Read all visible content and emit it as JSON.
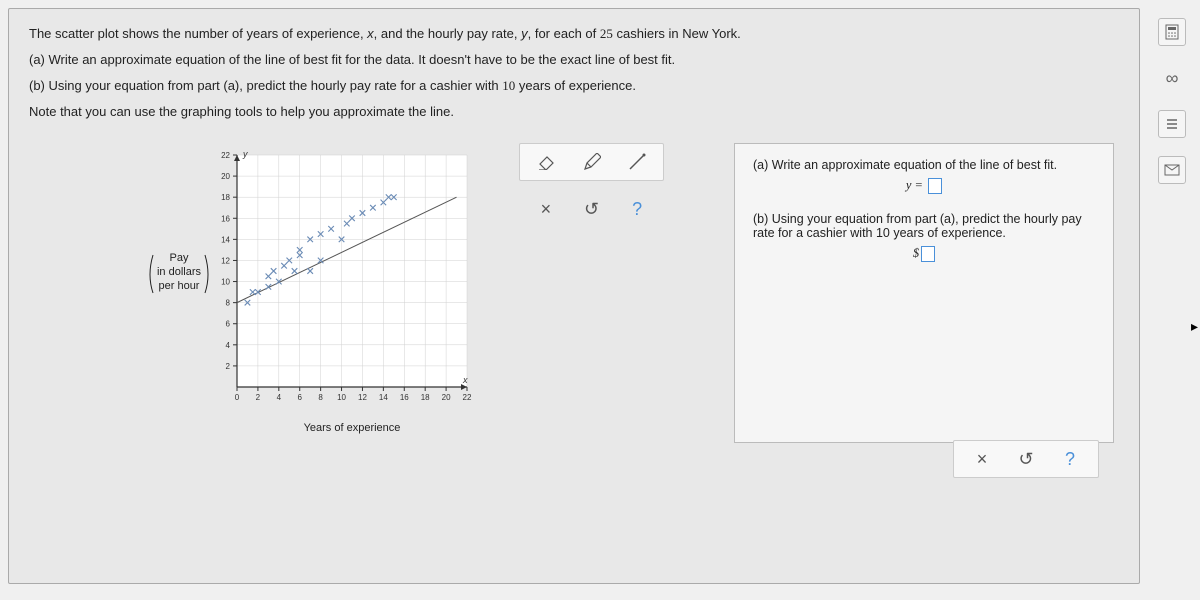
{
  "problem": {
    "line1_a": "The scatter plot shows the number of years of experience, ",
    "var_x": "x",
    "line1_b": ", and the hourly pay rate, ",
    "var_y": "y",
    "line1_c": ", for each of ",
    "count": "25",
    "line1_d": " cashiers in New York.",
    "line2": "(a) Write an approximate equation of the line of best fit for the data. It doesn't have to be the exact line of best fit.",
    "line3_a": "(b) Using your equation from part (a), predict the hourly pay rate for a cashier with ",
    "years": "10",
    "line3_b": " years of experience.",
    "line4": "Note that you can use the graphing tools to help you approximate the line."
  },
  "chart": {
    "type": "scatter",
    "y_label_top": "Pay",
    "y_label_mid": "in dollars",
    "y_label_bot": "per hour",
    "x_label": "Years of experience",
    "y_axis_letter": "y",
    "x_axis_letter": "x",
    "xlim": [
      0,
      22
    ],
    "ylim": [
      0,
      22
    ],
    "xtick_step": 2,
    "ytick_step": 2,
    "xtick_labels": [
      0,
      2,
      4,
      6,
      8,
      10,
      12,
      14,
      16,
      18,
      20,
      22
    ],
    "ytick_labels": [
      2,
      4,
      6,
      8,
      10,
      12,
      14,
      16,
      18,
      20,
      22
    ],
    "tick_fontsize": 8,
    "label_fontsize": 11,
    "marker": "x",
    "marker_color": "#6a8bb5",
    "line_color": "#555",
    "axis_color": "#333",
    "grid_color": "#d0d0d0",
    "background_color": "#f8f8f8",
    "plot_bg": "#ffffff",
    "points": [
      {
        "x": 1,
        "y": 8
      },
      {
        "x": 1.5,
        "y": 9
      },
      {
        "x": 2,
        "y": 9
      },
      {
        "x": 3,
        "y": 9.5
      },
      {
        "x": 3,
        "y": 10.5
      },
      {
        "x": 3.5,
        "y": 11
      },
      {
        "x": 4,
        "y": 10
      },
      {
        "x": 4.5,
        "y": 11.5
      },
      {
        "x": 5,
        "y": 12
      },
      {
        "x": 5.5,
        "y": 11
      },
      {
        "x": 6,
        "y": 12.5
      },
      {
        "x": 6,
        "y": 13
      },
      {
        "x": 7,
        "y": 11
      },
      {
        "x": 7,
        "y": 14
      },
      {
        "x": 8,
        "y": 12
      },
      {
        "x": 8,
        "y": 14.5
      },
      {
        "x": 9,
        "y": 15
      },
      {
        "x": 10,
        "y": 14
      },
      {
        "x": 10.5,
        "y": 15.5
      },
      {
        "x": 11,
        "y": 16
      },
      {
        "x": 12,
        "y": 16.5
      },
      {
        "x": 13,
        "y": 17
      },
      {
        "x": 14,
        "y": 17.5
      },
      {
        "x": 14.5,
        "y": 18
      },
      {
        "x": 15,
        "y": 18
      }
    ],
    "bestfit_line": {
      "x1": 0,
      "y1": 8,
      "x2": 21,
      "y2": 18
    }
  },
  "tools": {
    "eraser": "eraser",
    "pencil": "pencil",
    "line": "line",
    "clear_label": "×",
    "reset_label": "↺",
    "help_label": "?"
  },
  "answers": {
    "part_a_text": "(a) Write an approximate equation of the line of best fit.",
    "part_a_eq_lhs": "y = ",
    "part_b_text_a": "(b) Using your equation from part (a), predict the hourly pay rate for a cashier with ",
    "part_b_years": "10",
    "part_b_text_b": " years of experience.",
    "part_b_prefix": "$"
  },
  "side": {
    "calc": "calculator",
    "infinity": "∞",
    "list": "list",
    "mail": "mail"
  }
}
